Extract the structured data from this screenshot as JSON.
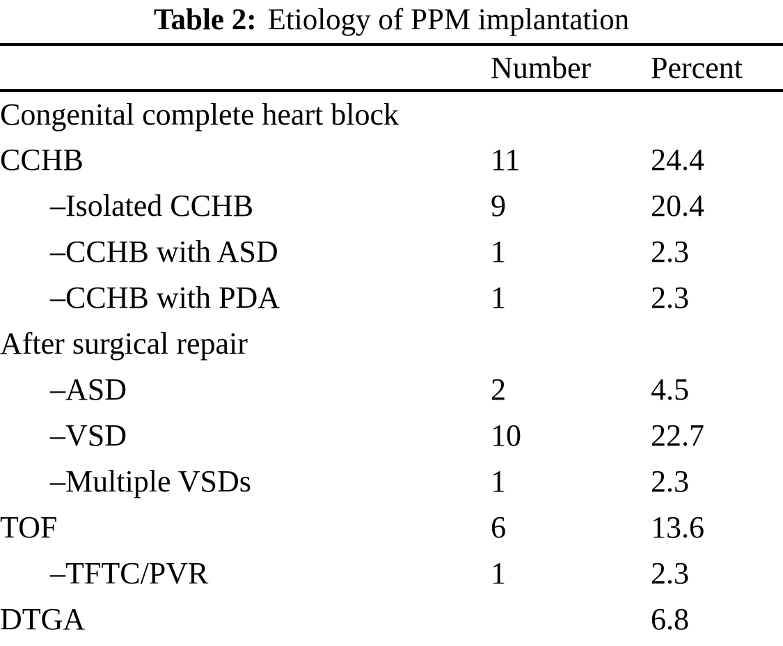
{
  "title": {
    "prefix": "Table 2:",
    "text": "Etiology of PPM implantation"
  },
  "table": {
    "columns": {
      "label": "",
      "number": "Number",
      "percent": "Percent"
    },
    "rows": [
      {
        "label": "Congenital complete heart block",
        "number": "",
        "percent": "",
        "indent": false,
        "section": true
      },
      {
        "label": "CCHB",
        "number": "11",
        "percent": "24.4",
        "indent": false,
        "section": false
      },
      {
        "label": "–Isolated CCHB",
        "number": "9",
        "percent": "20.4",
        "indent": true,
        "section": false
      },
      {
        "label": "–CCHB with ASD",
        "number": "1",
        "percent": "2.3",
        "indent": true,
        "section": false
      },
      {
        "label": "–CCHB with PDA",
        "number": "1",
        "percent": "2.3",
        "indent": true,
        "section": false
      },
      {
        "label": "After surgical repair",
        "number": "",
        "percent": "",
        "indent": false,
        "section": true
      },
      {
        "label": "–ASD",
        "number": "2",
        "percent": "4.5",
        "indent": true,
        "section": false
      },
      {
        "label": "–VSD",
        "number": "10",
        "percent": "22.7",
        "indent": true,
        "section": false
      },
      {
        "label": "–Multiple VSDs",
        "number": "1",
        "percent": "2.3",
        "indent": true,
        "section": false
      },
      {
        "label": "TOF",
        "number": "6",
        "percent": "13.6",
        "indent": false,
        "section": false
      },
      {
        "label": "–TFTC/PVR",
        "number": "1",
        "percent": "2.3",
        "indent": true,
        "section": false
      },
      {
        "label": "DTGA",
        "number": "",
        "percent": "6.8",
        "indent": false,
        "section": false
      }
    ]
  },
  "colors": {
    "background": "#ffffff",
    "text": "#000000",
    "rule": "#000000"
  }
}
